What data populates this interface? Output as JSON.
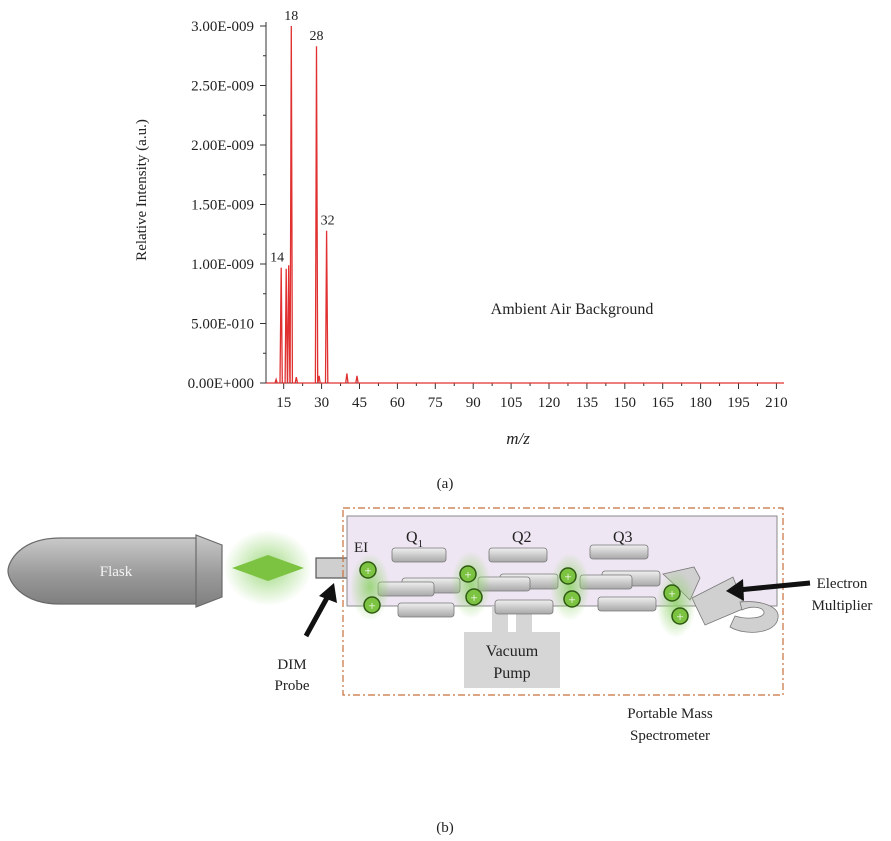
{
  "chart_data": {
    "type": "line",
    "annotation": "Ambient Air Background",
    "xlabel": "m/z",
    "ylabel": "Relative Intensity (a.u.)",
    "xlim": [
      8,
      213
    ],
    "ylim": [
      0,
      3e-09
    ],
    "x_ticks": [
      15,
      30,
      45,
      60,
      75,
      90,
      105,
      120,
      135,
      150,
      165,
      180,
      195,
      210
    ],
    "y_ticks": [
      {
        "value": 0,
        "label": "0.00E+000"
      },
      {
        "value": 5e-10,
        "label": "5.00E-010"
      },
      {
        "value": 1e-09,
        "label": "1.00E-009"
      },
      {
        "value": 1.5e-09,
        "label": "1.50E-009"
      },
      {
        "value": 2e-09,
        "label": "2.00E-009"
      },
      {
        "value": 2.5e-09,
        "label": "2.50E-009"
      },
      {
        "value": 3e-09,
        "label": "3.00E-009"
      }
    ],
    "series": [
      {
        "color": "#e03030",
        "peaks": [
          {
            "x": 12,
            "y": 3e-11
          },
          {
            "x": 14,
            "y": 9.7e-10
          },
          {
            "x": 16,
            "y": 9.6e-10
          },
          {
            "x": 17,
            "y": 9.9e-10
          },
          {
            "x": 18,
            "y": 3e-09
          },
          {
            "x": 20,
            "y": 5e-11
          },
          {
            "x": 28,
            "y": 2.83e-09
          },
          {
            "x": 29,
            "y": 6e-11
          },
          {
            "x": 32,
            "y": 1.28e-09
          },
          {
            "x": 40,
            "y": 8e-11
          },
          {
            "x": 44,
            "y": 6e-11
          }
        ]
      }
    ],
    "peak_labels": [
      {
        "x": 14,
        "y": 9.7e-10,
        "text": "14"
      },
      {
        "x": 18,
        "y": 3e-09,
        "text": "18"
      },
      {
        "x": 28,
        "y": 2.83e-09,
        "text": "28"
      },
      {
        "x": 32,
        "y": 1.28e-09,
        "text": "32"
      }
    ]
  },
  "captions": {
    "a": "(a)",
    "b": "(b)"
  },
  "diagram": {
    "flask_label": "Flask",
    "probe_label_line1": "DIM",
    "probe_label_line2": "Probe",
    "ei_label": "EI",
    "q1_label": "Q",
    "q1_sub": "1",
    "q2_label": "Q2",
    "q3_label": "Q3",
    "detector_label_line1": "Electron",
    "detector_label_line2": "Multiplier",
    "pump_label_line1": "Vacuum",
    "pump_label_line2": "Pump",
    "instrument_label_line1": "Portable Mass",
    "instrument_label_line2": "Spectrometer",
    "ion_symbol": "+",
    "colors": {
      "border": "#c8703a",
      "chamber": "#efe6f3",
      "rod": "#d4d4d4",
      "ion": "#7cc342",
      "glow": "#8fd36a"
    }
  }
}
